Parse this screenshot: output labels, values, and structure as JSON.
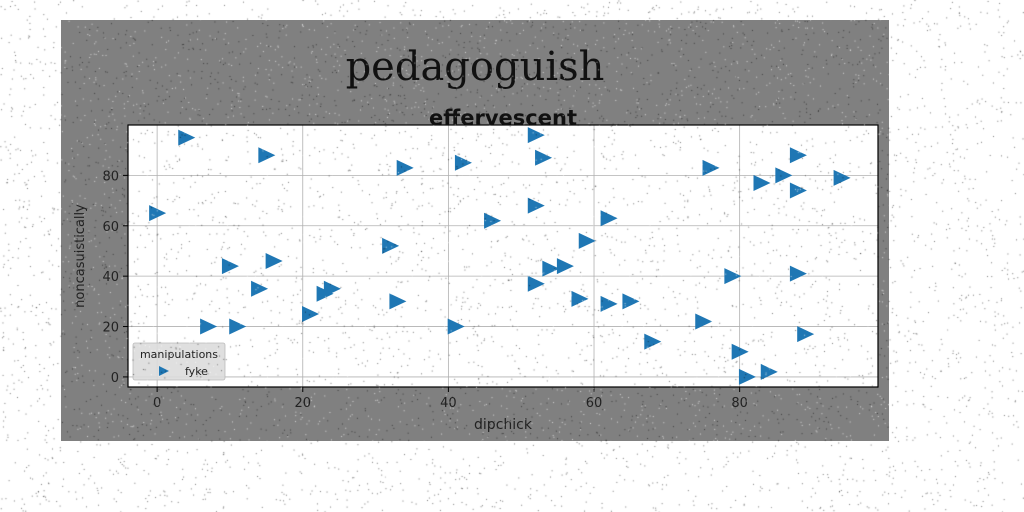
{
  "figure": {
    "suptitle": "pedagoguish",
    "background": "#808080",
    "plot_background": "#ffffff",
    "noise": true
  },
  "chart_data": {
    "type": "scatter",
    "title": "effervescent",
    "xlabel": "dipchick",
    "ylabel": "noncasuistically",
    "xlim": [
      -4,
      99
    ],
    "ylim": [
      -4,
      100
    ],
    "xticks": [
      0,
      20,
      40,
      60,
      80
    ],
    "yticks": [
      0,
      20,
      40,
      60,
      80
    ],
    "grid": true,
    "legend": {
      "title": "manipulations",
      "placement": "lower-left"
    },
    "series": [
      {
        "name": "fyke",
        "marker": "triangle-right",
        "color": "#1f77b4",
        "points": [
          [
            4,
            95
          ],
          [
            0,
            65
          ],
          [
            15,
            88
          ],
          [
            10,
            44
          ],
          [
            16,
            46
          ],
          [
            14,
            35
          ],
          [
            7,
            20
          ],
          [
            11,
            20
          ],
          [
            21,
            25
          ],
          [
            23,
            33
          ],
          [
            24,
            35
          ],
          [
            32,
            52
          ],
          [
            33,
            30
          ],
          [
            34,
            83
          ],
          [
            41,
            20
          ],
          [
            42,
            85
          ],
          [
            46,
            62
          ],
          [
            52,
            96
          ],
          [
            53,
            87
          ],
          [
            52,
            68
          ],
          [
            52,
            37
          ],
          [
            54,
            43
          ],
          [
            56,
            44
          ],
          [
            59,
            54
          ],
          [
            58,
            31
          ],
          [
            62,
            63
          ],
          [
            62,
            29
          ],
          [
            65,
            30
          ],
          [
            68,
            14
          ],
          [
            75,
            22
          ],
          [
            76,
            83
          ],
          [
            79,
            40
          ],
          [
            80,
            10
          ],
          [
            81,
            0
          ],
          [
            84,
            2
          ],
          [
            83,
            77
          ],
          [
            86,
            80
          ],
          [
            88,
            88
          ],
          [
            88,
            74
          ],
          [
            88,
            41
          ],
          [
            89,
            17
          ],
          [
            94,
            79
          ]
        ]
      }
    ]
  }
}
